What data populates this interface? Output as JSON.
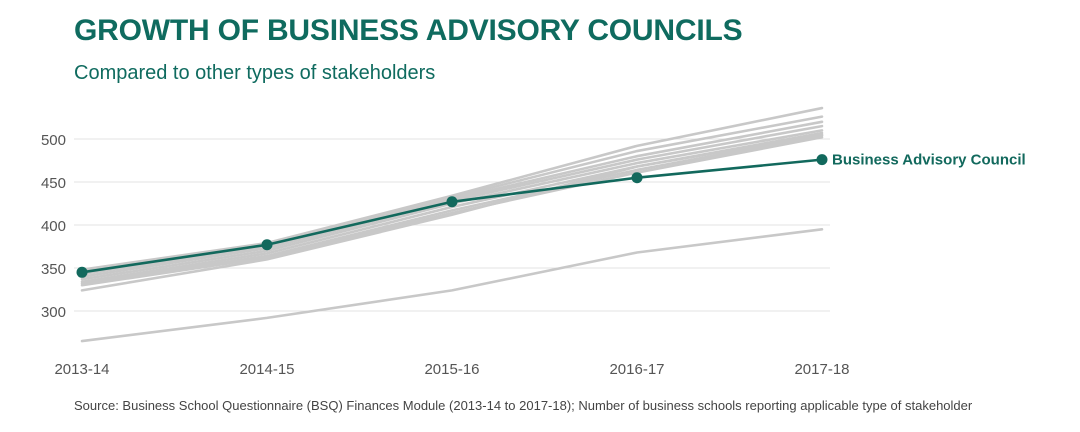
{
  "title": "GROWTH OF BUSINESS ADVISORY COUNCILS",
  "subtitle": "Compared to other types of stakeholders",
  "source": "Source: Business School Questionnaire (BSQ) Finances Module (2013-14 to 2017-18); Number of business schools reporting applicable type of stakeholder",
  "colors": {
    "title": "#0f6b5f",
    "highlight": "#12695d",
    "other": "#c8c8c8",
    "grid": "#e3e3e3",
    "tick": "#555555"
  },
  "chart_data": {
    "type": "line",
    "categories": [
      "2013-14",
      "2014-15",
      "2015-16",
      "2016-17",
      "2017-18"
    ],
    "yticks": [
      300,
      350,
      400,
      450,
      500
    ],
    "ylim": [
      255,
      535
    ],
    "grid": true,
    "legend": "direct label at end of highlighted line",
    "highlight_series": {
      "name": "Business Advisory Council",
      "values": [
        345,
        377,
        427,
        455,
        476
      ]
    },
    "other_series": [
      {
        "values": [
          348,
          379,
          434,
          492,
          536
        ]
      },
      {
        "values": [
          346,
          378,
          432,
          486,
          526
        ]
      },
      {
        "values": [
          343,
          375,
          430,
          480,
          520
        ]
      },
      {
        "values": [
          340,
          373,
          428,
          476,
          515
        ]
      },
      {
        "values": [
          337,
          370,
          425,
          472,
          510
        ]
      },
      {
        "values": [
          334,
          367,
          421,
          468,
          507
        ]
      },
      {
        "values": [
          332,
          364,
          417,
          464,
          504
        ]
      },
      {
        "values": [
          330,
          362,
          414,
          461,
          502
        ]
      },
      {
        "values": [
          324,
          360,
          412,
          468,
          505
        ]
      },
      {
        "values": [
          265,
          292,
          324,
          368,
          395
        ]
      }
    ]
  }
}
